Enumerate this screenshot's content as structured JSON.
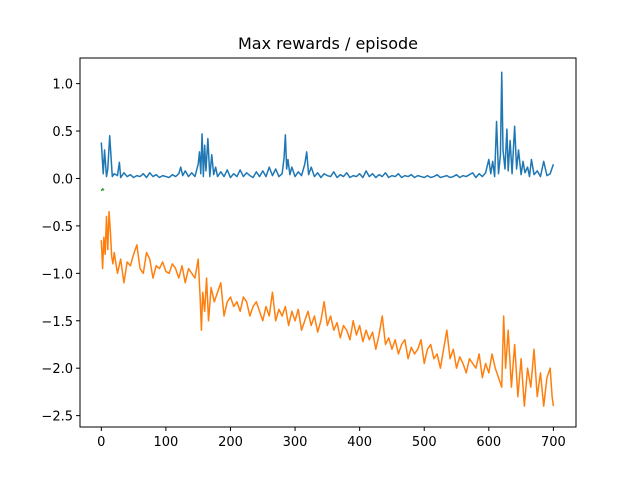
{
  "chart_data": {
    "type": "line",
    "title": "Max rewards / episode",
    "xlabel": "",
    "ylabel": "",
    "xlim": [
      -33,
      735
    ],
    "ylim": [
      -2.62,
      1.27
    ],
    "x_ticks": [
      0,
      100,
      200,
      300,
      400,
      500,
      600,
      700
    ],
    "y_ticks": [
      -2.5,
      -2.0,
      -1.5,
      -1.0,
      -0.5,
      0.0,
      0.5,
      1.0
    ],
    "x_tick_labels": [
      "0",
      "100",
      "200",
      "300",
      "400",
      "500",
      "600",
      "700"
    ],
    "y_tick_labels": [
      "−2.5",
      "−2.0",
      "−1.5",
      "−1.0",
      "−0.5",
      "0.0",
      "0.5",
      "1.0"
    ],
    "grid": false,
    "legend": "none",
    "series": [
      {
        "color": "#1f77b4",
        "x": [
          0,
          3,
          5,
          8,
          10,
          13,
          17,
          20,
          25,
          28,
          30,
          35,
          40,
          45,
          50,
          55,
          60,
          65,
          70,
          75,
          80,
          85,
          90,
          95,
          100,
          105,
          110,
          115,
          120,
          123,
          126,
          130,
          135,
          140,
          145,
          150,
          152,
          154,
          156,
          158,
          160,
          162,
          165,
          168,
          171,
          174,
          177,
          180,
          185,
          190,
          195,
          200,
          205,
          210,
          215,
          220,
          225,
          230,
          235,
          240,
          245,
          250,
          255,
          260,
          265,
          270,
          275,
          280,
          283,
          285,
          287,
          289,
          292,
          295,
          300,
          305,
          310,
          315,
          318,
          321,
          325,
          330,
          335,
          340,
          345,
          350,
          355,
          360,
          365,
          370,
          375,
          380,
          385,
          390,
          395,
          400,
          405,
          410,
          415,
          420,
          425,
          430,
          435,
          440,
          445,
          450,
          455,
          460,
          465,
          470,
          475,
          480,
          485,
          490,
          495,
          500,
          505,
          510,
          515,
          520,
          525,
          530,
          535,
          540,
          545,
          550,
          555,
          560,
          565,
          570,
          575,
          580,
          585,
          590,
          595,
          600,
          603,
          606,
          609,
          612,
          615,
          618,
          620,
          622,
          625,
          628,
          630,
          633,
          636,
          640,
          643,
          646,
          650,
          653,
          656,
          660,
          663,
          666,
          670,
          675,
          680,
          685,
          690,
          695,
          700
        ],
        "y": [
          0.38,
          0.05,
          0.3,
          0.02,
          0.1,
          0.45,
          0.02,
          0.05,
          0.03,
          0.17,
          0.01,
          0.06,
          0.02,
          0.04,
          0.01,
          0.03,
          0.02,
          0.05,
          0.01,
          0.06,
          0.02,
          0.04,
          0.01,
          0.03,
          0.02,
          0.01,
          0.04,
          0.02,
          0.05,
          0.12,
          0.03,
          0.08,
          0.02,
          0.06,
          0.02,
          0.15,
          0.28,
          0.05,
          0.47,
          0.02,
          0.35,
          0.08,
          0.42,
          0.02,
          0.25,
          0.04,
          0.12,
          0.02,
          0.07,
          0.02,
          0.09,
          0.01,
          0.05,
          0.02,
          0.09,
          0.02,
          0.06,
          0.03,
          0.01,
          0.07,
          0.02,
          0.08,
          0.02,
          0.12,
          0.03,
          0.1,
          0.02,
          0.05,
          0.22,
          0.46,
          0.1,
          0.2,
          0.04,
          0.12,
          0.02,
          0.07,
          0.03,
          0.15,
          0.28,
          0.04,
          0.12,
          0.02,
          0.06,
          0.01,
          0.05,
          0.03,
          0.02,
          0.07,
          0.01,
          0.04,
          0.02,
          0.06,
          0.01,
          0.03,
          0.02,
          0.05,
          0.01,
          0.08,
          0.02,
          0.05,
          0.01,
          0.04,
          0.02,
          0.06,
          0.01,
          0.03,
          0.02,
          0.05,
          0.01,
          0.03,
          0.02,
          0.04,
          0.01,
          0.03,
          0.02,
          0.01,
          0.03,
          0.01,
          0.02,
          0.04,
          0.01,
          0.02,
          0.03,
          0.01,
          0.02,
          0.04,
          0.01,
          0.03,
          0.02,
          0.04,
          0.06,
          0.01,
          0.05,
          0.02,
          0.06,
          0.2,
          0.05,
          0.18,
          0.02,
          0.6,
          0.05,
          0.25,
          1.12,
          0.3,
          0.1,
          0.52,
          0.08,
          0.4,
          0.05,
          0.55,
          0.1,
          0.3,
          0.04,
          0.18,
          0.06,
          0.12,
          0.02,
          0.2,
          0.04,
          0.08,
          0.02,
          0.18,
          0.03,
          0.05,
          0.15
        ],
        "x_short": [
          0,
          2,
          4
        ],
        "y_short": [
          -0.12,
          -0.1,
          -0.11
        ]
      },
      {
        "color": "#ff7f0e",
        "x": [
          0,
          2,
          4,
          6,
          8,
          10,
          12,
          14,
          16,
          18,
          20,
          25,
          30,
          35,
          40,
          45,
          50,
          55,
          60,
          65,
          70,
          75,
          80,
          85,
          90,
          95,
          100,
          105,
          110,
          115,
          120,
          125,
          130,
          135,
          140,
          145,
          150,
          153,
          155,
          157,
          160,
          163,
          166,
          170,
          175,
          180,
          185,
          190,
          195,
          200,
          205,
          210,
          215,
          220,
          225,
          230,
          235,
          240,
          245,
          250,
          255,
          260,
          265,
          270,
          275,
          280,
          285,
          290,
          295,
          300,
          305,
          310,
          315,
          320,
          325,
          330,
          335,
          340,
          345,
          350,
          355,
          360,
          365,
          370,
          375,
          380,
          385,
          390,
          395,
          400,
          405,
          410,
          415,
          420,
          425,
          430,
          435,
          440,
          445,
          450,
          455,
          460,
          465,
          470,
          475,
          480,
          485,
          490,
          495,
          500,
          505,
          510,
          515,
          520,
          525,
          530,
          535,
          540,
          545,
          550,
          555,
          560,
          565,
          570,
          575,
          580,
          585,
          590,
          595,
          600,
          605,
          610,
          615,
          620,
          623,
          626,
          630,
          635,
          640,
          645,
          650,
          655,
          660,
          665,
          670,
          675,
          680,
          685,
          690,
          695,
          698,
          700
        ],
        "y": [
          -0.65,
          -0.95,
          -0.62,
          -0.8,
          -0.4,
          -0.75,
          -0.35,
          -0.55,
          -0.82,
          -0.9,
          -0.78,
          -1.0,
          -0.85,
          -1.1,
          -0.88,
          -0.92,
          -0.8,
          -0.7,
          -0.95,
          -1.0,
          -0.78,
          -0.85,
          -1.05,
          -0.92,
          -0.95,
          -0.88,
          -0.98,
          -1.0,
          -0.9,
          -0.95,
          -1.05,
          -0.92,
          -1.1,
          -0.95,
          -1.0,
          -1.05,
          -0.85,
          -1.25,
          -1.6,
          -1.2,
          -1.4,
          -1.05,
          -1.5,
          -1.15,
          -1.3,
          -1.2,
          -1.1,
          -1.45,
          -1.3,
          -1.25,
          -1.35,
          -1.3,
          -1.4,
          -1.25,
          -1.3,
          -1.45,
          -1.35,
          -1.3,
          -1.4,
          -1.5,
          -1.35,
          -1.45,
          -1.2,
          -1.5,
          -1.38,
          -1.45,
          -1.35,
          -1.55,
          -1.4,
          -1.5,
          -1.38,
          -1.6,
          -1.5,
          -1.4,
          -1.55,
          -1.45,
          -1.62,
          -1.5,
          -1.3,
          -1.55,
          -1.45,
          -1.6,
          -1.52,
          -1.68,
          -1.55,
          -1.6,
          -1.7,
          -1.5,
          -1.65,
          -1.55,
          -1.72,
          -1.6,
          -1.7,
          -1.62,
          -1.8,
          -1.65,
          -1.45,
          -1.75,
          -1.68,
          -1.8,
          -1.7,
          -1.85,
          -1.75,
          -1.7,
          -1.9,
          -1.78,
          -1.85,
          -1.8,
          -1.7,
          -1.95,
          -1.8,
          -1.75,
          -1.9,
          -1.85,
          -2.0,
          -1.8,
          -1.6,
          -1.9,
          -1.8,
          -2.0,
          -1.88,
          -1.95,
          -2.05,
          -1.9,
          -1.95,
          -2.0,
          -1.85,
          -2.1,
          -1.95,
          -2.05,
          -1.85,
          -2.0,
          -2.1,
          -2.2,
          -1.45,
          -2.0,
          -1.6,
          -2.2,
          -1.75,
          -2.3,
          -1.9,
          -2.4,
          -2.0,
          -2.2,
          -1.8,
          -2.3,
          -2.05,
          -2.4,
          -2.1,
          -2.0,
          -2.3,
          -2.4
        ],
        "x_short": [],
        "y_short": []
      },
      {
        "color": "#2ca02c",
        "x": [
          0,
          1,
          2,
          3,
          4
        ],
        "y": [
          -0.13,
          -0.12,
          -0.11,
          -0.12,
          -0.11
        ],
        "x_short": [],
        "y_short": []
      }
    ]
  }
}
